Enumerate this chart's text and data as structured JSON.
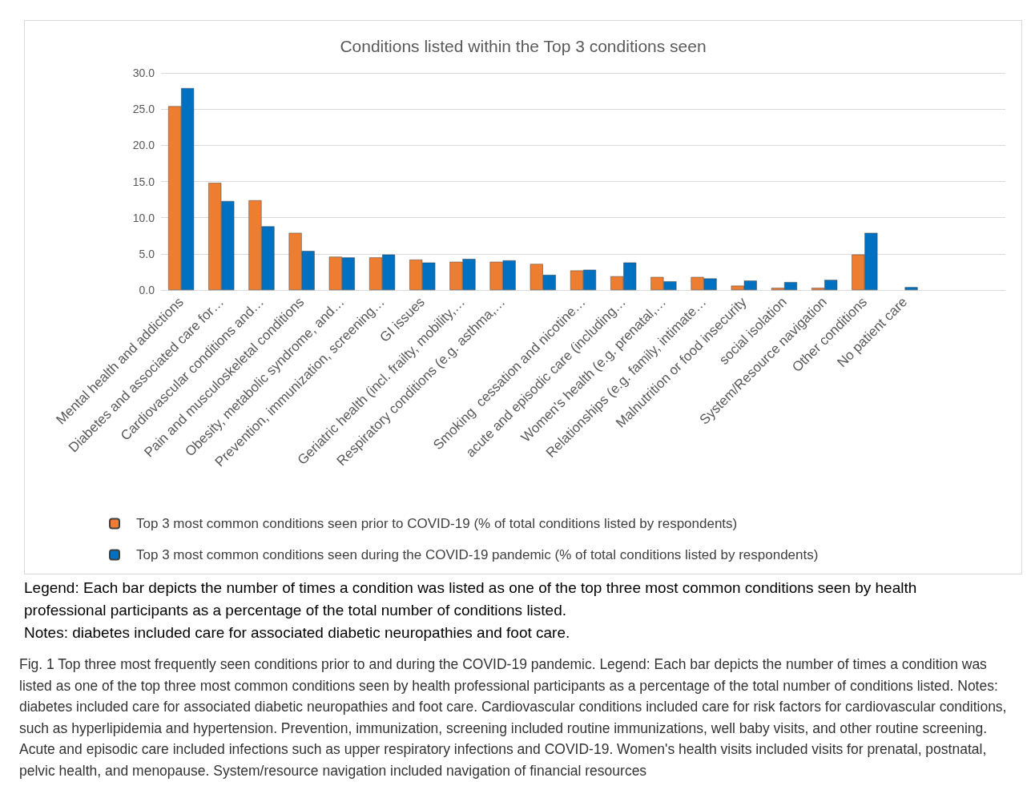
{
  "chart_data": {
    "type": "bar",
    "title": "Conditions listed within the Top 3 conditions seen",
    "categories": [
      "Mental health and addictions",
      "Diabetes and associated care for…",
      "Cardiovascular conditions and…",
      "Pain and musculoskeletal conditions",
      "Obesity, metabolic syndrome, and…",
      "Prevention, immunization, screening…",
      "GI issues",
      "Geriatric health (incl. frailty, mobility,…",
      "Respiratory conditions (e.g. asthma,…",
      null,
      "Smoking  cessation and nicotine…",
      "acute and episodic care (including…",
      "Women's health (e.g. prenatal,…",
      "Relationships (e.g. family, intimate…",
      "Malnutrition or food insecurity",
      "social isolation",
      "System/Resource navigation",
      "Other conditions",
      "No patient care",
      null,
      null
    ],
    "series": [
      {
        "name": "Top 3 most common conditions seen prior to COVID-19 (% of total conditions listed by respondents)",
        "color": "#ed7d31",
        "values": [
          25.4,
          14.8,
          12.4,
          7.9,
          4.6,
          4.5,
          4.2,
          3.9,
          3.9,
          3.6,
          2.7,
          1.9,
          1.8,
          1.8,
          0.6,
          0.3,
          0.3,
          4.9,
          null,
          null,
          null
        ]
      },
      {
        "name": "Top 3 most common conditions seen during the COVID-19 pandemic (% of total conditions listed by respondents)",
        "color": "#0070c0",
        "values": [
          27.9,
          12.3,
          8.8,
          5.4,
          4.5,
          4.9,
          3.8,
          4.3,
          4.1,
          2.1,
          2.8,
          3.8,
          1.2,
          1.6,
          1.3,
          1.1,
          1.4,
          7.9,
          0.4,
          null,
          null
        ]
      }
    ],
    "ylim": [
      0,
      30
    ],
    "yticks": [
      {
        "value": 0,
        "label": "0.0"
      },
      {
        "value": 5,
        "label": "5.0"
      },
      {
        "value": 10,
        "label": "10.0"
      },
      {
        "value": 15,
        "label": "15.0"
      },
      {
        "value": 20,
        "label": "20.0"
      },
      {
        "value": 25,
        "label": "25.0"
      },
      {
        "value": 30,
        "label": "30.0"
      }
    ],
    "grid": "y",
    "legend": "bottom",
    "annotations": [
      "Legend: Each bar depicts the number of times a condition was listed as one of the top three most common conditions seen by health professional participants as a percentage of the total number of conditions listed.",
      "Notes: diabetes included care for associated diabetic neuropathies and foot care.",
      "Fig. 1 Top three most frequently seen conditions prior to and during the COVID-19 pandemic. Legend: Each bar depicts the number of times a condition was listed as one of the top three most common conditions seen by health professional participants as a percentage of the total number of conditions listed. Notes: diabetes included care for associated diabetic neuropathies and foot care. Cardiovascular conditions included care for risk factors for cardiovascular conditions, such as hyperlipidemia and hypertension. Prevention, immunization, screening included routine immunizations, well baby visits, and other routine screening. Acute and episodic care included infections such as upper respiratory infections and COVID-19. Women's health visits included visits for prenatal, postnatal, pelvic health, and menopause. System/resource navigation included navigation of financial resources"
    ]
  }
}
